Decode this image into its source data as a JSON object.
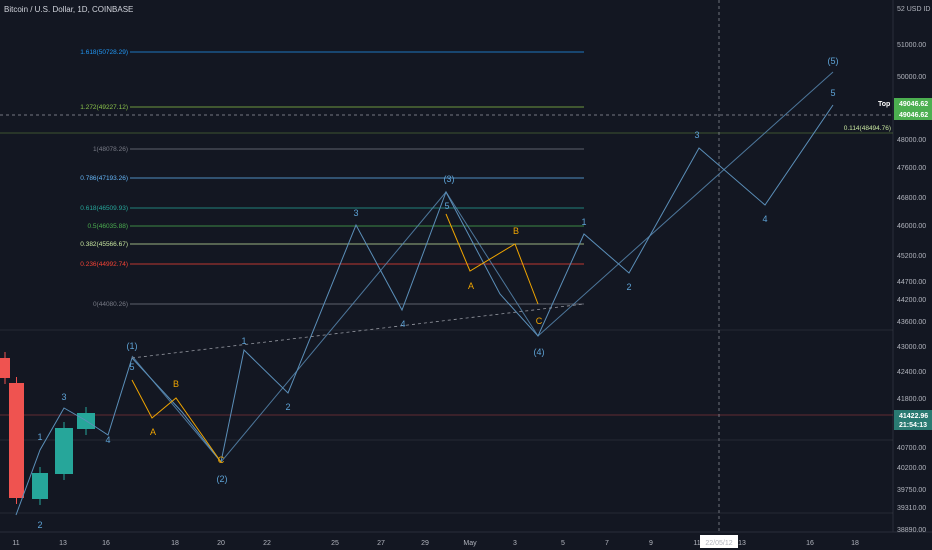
{
  "header": {
    "title": "Bitcoin / U.S. Dollar, 1D, COINBASE",
    "currency": "USD"
  },
  "colors": {
    "background": "#131722",
    "axis_text": "#b2b5be",
    "wave_line": "#5b8fb9",
    "wave_label": "#5ea3d6",
    "abc": "#f0a500",
    "bull_candle": "#26a69a",
    "bear_candle": "#ef5350",
    "price_badge": "#4caf50",
    "last_badge": "#2a7a72"
  },
  "price_axis": {
    "ticks": [
      "51000.00",
      "50000.00",
      "49000.00",
      "48000.00",
      "47600.00",
      "46800.00",
      "46000.00",
      "45200.00",
      "44700.00",
      "44200.00",
      "43600.00",
      "43000.00",
      "42400.00",
      "41800.00",
      "41200.00",
      "40700.00",
      "40200.00",
      "39750.00",
      "39310.00",
      "38890.00"
    ],
    "top_label": "52 USD ID",
    "current_price": "49046.62",
    "current_price_2": "49046.62",
    "last_price": "41422.96",
    "countdown": "21:54:13"
  },
  "time_axis": {
    "ticks": [
      "11",
      "13",
      "16",
      "18",
      "20",
      "22",
      "25",
      "27",
      "29",
      "May",
      "3",
      "5",
      "7",
      "9",
      "11",
      "13",
      "16",
      "18"
    ],
    "crosshair_date": "22/05/12"
  },
  "fib_levels": [
    {
      "label": "1.618(50728.29)",
      "color": "#2196f3"
    },
    {
      "label": "1.272(49227.12)",
      "color": "#8bc34a"
    },
    {
      "label": "1(48078.26)",
      "color": "#787b86"
    },
    {
      "label": "0.786(47193.26)",
      "color": "#64b5f6"
    },
    {
      "label": "0.618(46509.93)",
      "color": "#26a69a"
    },
    {
      "label": "0.5(46035.88)",
      "color": "#4caf50"
    },
    {
      "label": "0.382(45566.67)",
      "color": "#c8e6a0"
    },
    {
      "label": "0.236(44992.74)",
      "color": "#f44336"
    },
    {
      "label": "0(44080.26)",
      "color": "#787b86"
    }
  ],
  "annotations": {
    "top_label": "Top",
    "fib_right": "0.114(48494.76)",
    "waves_main": [
      "(1)",
      "(2)",
      "(3)",
      "(4)",
      "(5)"
    ],
    "waves_sub": [
      "1",
      "2",
      "3",
      "4",
      "5",
      "A",
      "B",
      "C"
    ]
  }
}
